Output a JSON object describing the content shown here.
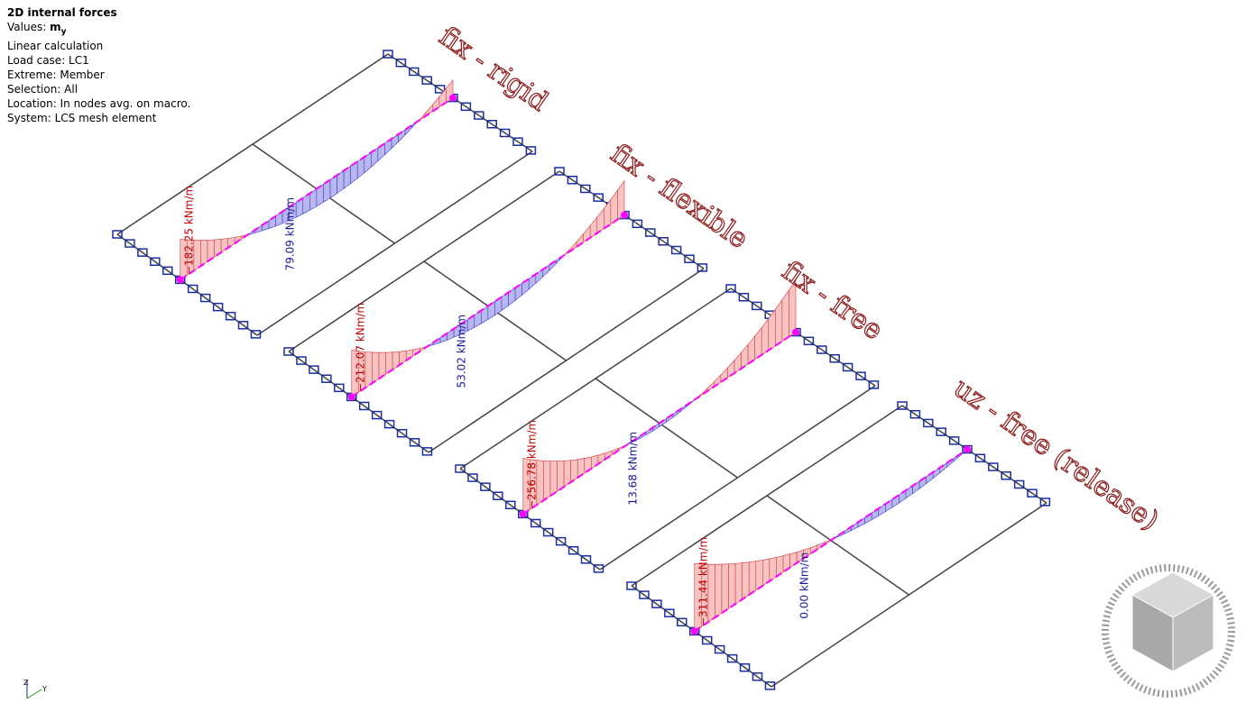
{
  "info": {
    "title": "2D internal forces",
    "values_prefix": "Values:",
    "values_symbol": "m",
    "values_subscript": "y",
    "lines": [
      "Linear calculation",
      "Load case: LC1",
      "Extreme: Member",
      "Selection: All",
      "Location: In nodes avg. on macro.",
      "System: LCS mesh element"
    ]
  },
  "models": [
    {
      "label": "fix - rigid",
      "min_label": "−182.25 kNm/m",
      "max_label": "79.09 kNm/m"
    },
    {
      "label": "fix - flexible",
      "min_label": "−212.07 kNm/m",
      "max_label": "53.02 kNm/m"
    },
    {
      "label": "fix - free",
      "min_label": "−256.78 kNm/m",
      "max_label": "13.68 kNm/m"
    },
    {
      "label": "uz - free (release)",
      "min_label": "−311.44 kNm/m",
      "max_label": "0.00 kNm/m"
    }
  ],
  "triad": {
    "z": "Z",
    "y": "Y"
  }
}
